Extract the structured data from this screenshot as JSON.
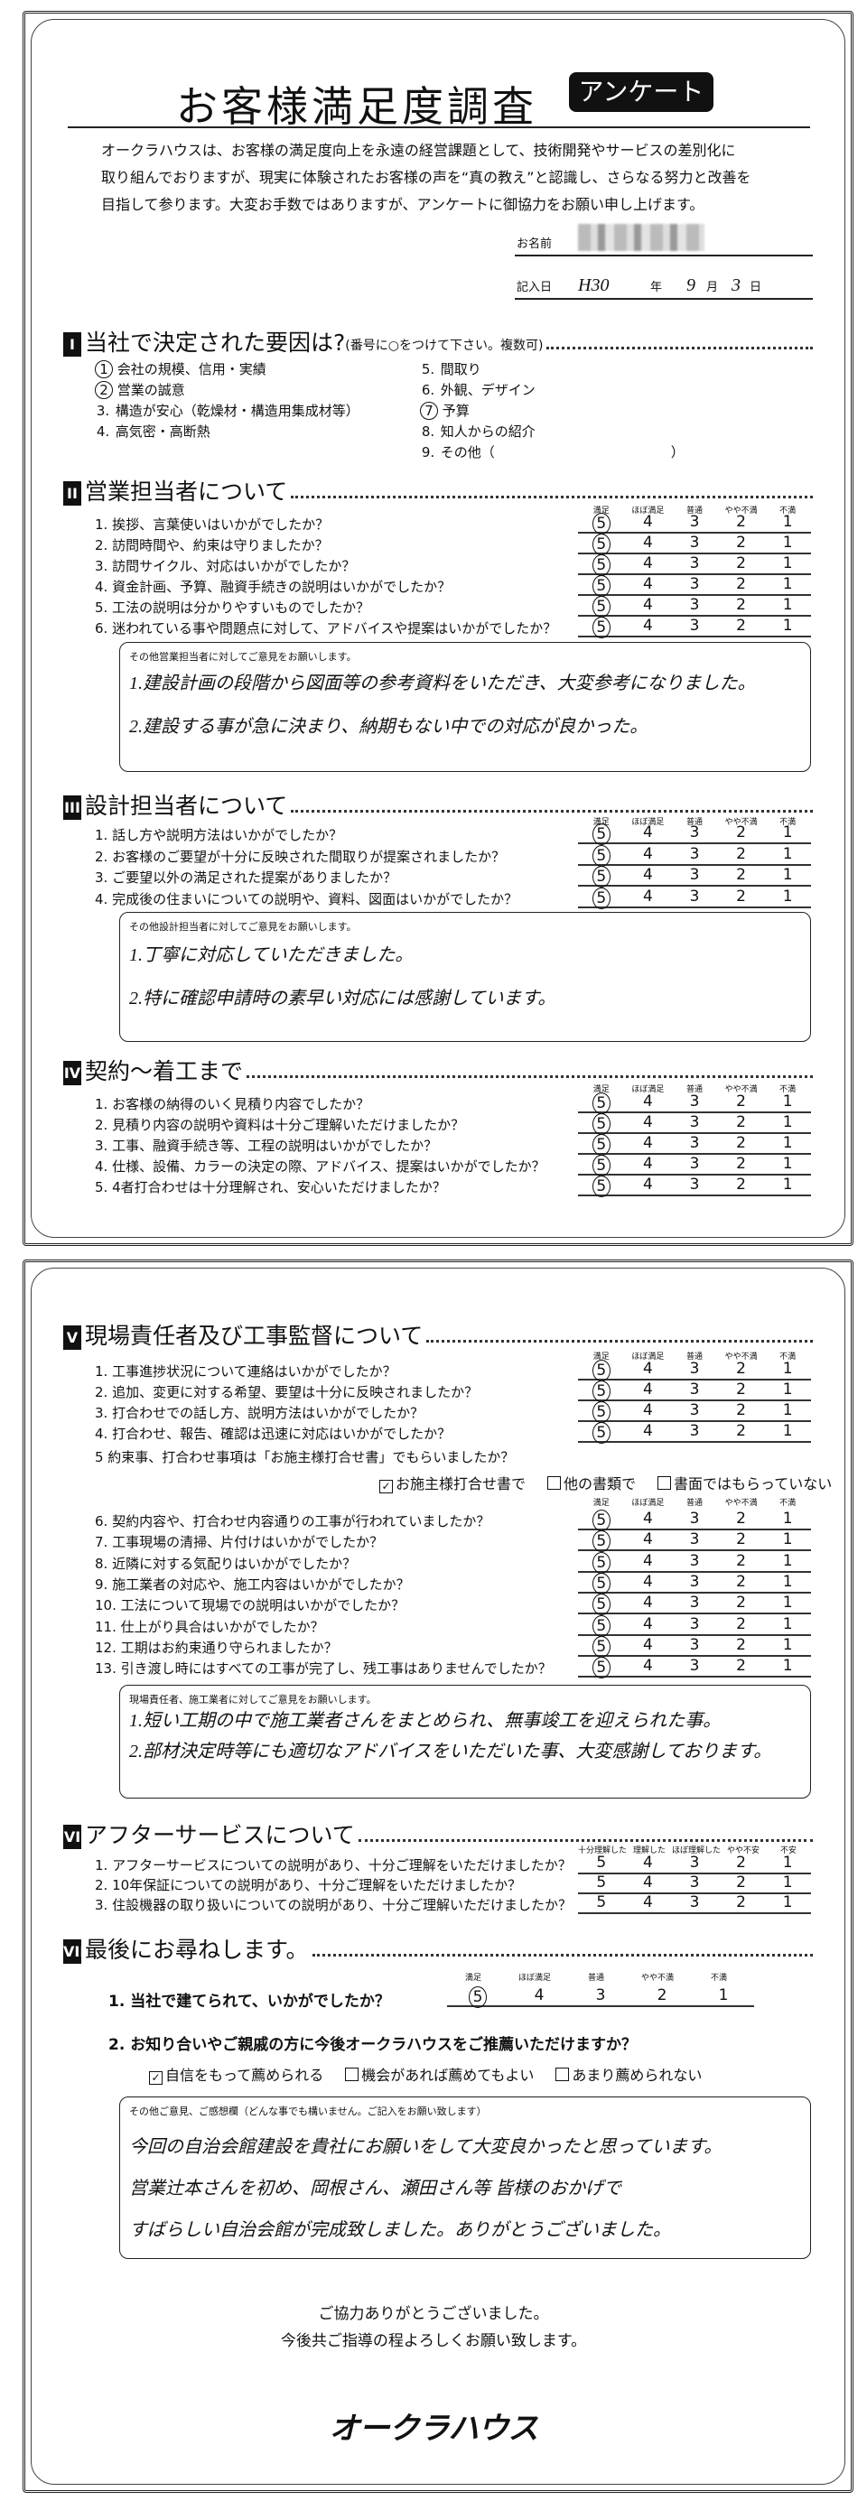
{
  "header": {
    "title": "お客様満足度調査",
    "badge": "アンケート",
    "intro": [
      "オークラハウスは、お客様の満足度向上を永遠の経営課題として、技術開発やサービスの差別化に",
      "取り組んでおりますが、現実に体験されたお客様の声を“真の教え”と認識し、さらなる努力と改善を",
      "目指して参ります。大変お手数ではありますが、アンケートに御協力をお願い申し上げます。"
    ],
    "name_label": "お名前",
    "date_label": "記入日",
    "date": {
      "era_year": "H30",
      "year_unit": "年",
      "month": "9",
      "month_unit": "月",
      "day": "3",
      "day_unit": "日"
    }
  },
  "scale_satisfaction": [
    "満足",
    "ほぼ満足",
    "普通",
    "やや不満",
    "不満"
  ],
  "scale_understanding": [
    "十分理解した",
    "理解した",
    "ほぼ理解した",
    "やや不安",
    "不安"
  ],
  "section1": {
    "numeral": "I",
    "title": "当社で決定された要因は?",
    "note": "(番号に○をつけて下さい。複数可)",
    "options": [
      {
        "num": "1",
        "text": "会社の規模、信用・実績",
        "selected": true
      },
      {
        "num": "2",
        "text": "営業の誠意",
        "selected": true
      },
      {
        "num": "3.",
        "text": "構造が安心（乾燥材・構造用集成材等）",
        "selected": false
      },
      {
        "num": "4.",
        "text": "高気密・高断熱",
        "selected": false
      },
      {
        "num": "5.",
        "text": "間取り",
        "selected": false
      },
      {
        "num": "6.",
        "text": "外観、デザイン",
        "selected": false
      },
      {
        "num": "7",
        "text": "予算",
        "selected": true
      },
      {
        "num": "8.",
        "text": "知人からの紹介",
        "selected": false
      },
      {
        "num": "9.",
        "text": "その他（　　　　　　　　　　　　　）",
        "selected": false
      }
    ]
  },
  "section2": {
    "numeral": "II",
    "title": "営業担当者について",
    "questions": [
      {
        "text": "1. 挨拶、言葉使いはいかがでしたか？",
        "answer": 5
      },
      {
        "text": "2. 訪問時間や、約束は守りましたか？",
        "answer": 5
      },
      {
        "text": "3. 訪問サイクル、対応はいかがでしたか？",
        "answer": 5
      },
      {
        "text": "4. 資金計画、予算、融資手続きの説明はいかがでしたか？",
        "answer": 5
      },
      {
        "text": "5. 工法の説明は分かりやすいものでしたか？",
        "answer": 5
      },
      {
        "text": "6. 迷われている事や問題点に対して、アドバイスや提案はいかがでしたか？",
        "answer": 5
      }
    ],
    "comment_label": "その他営業担当者に対してご意見をお願いします。",
    "comments": [
      "1.建設計画の段階から図面等の参考資料をいただき、大変参考になりました。",
      "2.建設する事が急に決まり、納期もない中での対応が良かった。"
    ]
  },
  "section3": {
    "numeral": "III",
    "title": "設計担当者について",
    "questions": [
      {
        "text": "1. 話し方や説明方法はいかがでしたか？",
        "answer": 5
      },
      {
        "text": "2. お客様のご要望が十分に反映された間取りが提案されましたか？",
        "answer": 5
      },
      {
        "text": "3. ご要望以外の満足された提案がありましたか？",
        "answer": 5
      },
      {
        "text": "4. 完成後の住まいについての説明や、資料、図面はいかがでしたか？",
        "answer": 5
      }
    ],
    "comment_label": "その他設計担当者に対してご意見をお願いします。",
    "comments": [
      "1.丁寧に対応していただきました。",
      "2.特に確認申請時の素早い対応には感謝しています。"
    ]
  },
  "section4": {
    "numeral": "IV",
    "title": "契約～着工まで",
    "questions": [
      {
        "text": "1. お客様の納得のいく見積り内容でしたか？",
        "answer": 5
      },
      {
        "text": "2. 見積り内容の説明や資料は十分ご理解いただけましたか？",
        "answer": 5
      },
      {
        "text": "3. 工事、融資手続き等、工程の説明はいかがでしたか？",
        "answer": 5
      },
      {
        "text": "4. 仕様、設備、カラーの決定の際、アドバイス、提案はいかがでしたか？",
        "answer": 5
      },
      {
        "text": "5. 4者打合わせは十分理解され、安心いただけましたか？",
        "answer": 5
      }
    ]
  },
  "section5": {
    "numeral": "V",
    "title": "現場責任者及び工事監督について",
    "questions_a": [
      {
        "text": "1. 工事進捗状況について連絡はいかがでしたか？",
        "answer": 5
      },
      {
        "text": "2. 追加、変更に対する希望、要望は十分に反映されましたか？",
        "answer": 5
      },
      {
        "text": "3. 打合わせでの話し方、説明方法はいかがでしたか？",
        "answer": 5
      },
      {
        "text": "4. 打合わせ、報告、確認は迅速に対応はいかがでしたか？",
        "answer": 5
      }
    ],
    "q5": "5 約束事、打合わせ事項は「お施主様打合せ書」でもらいましたか？",
    "q5_options": [
      {
        "label": "お施主様打合せ書で",
        "checked": true
      },
      {
        "label": "他の書類で",
        "checked": false
      },
      {
        "label": "書面ではもらっていない",
        "checked": false
      }
    ],
    "questions_b": [
      {
        "text": "6. 契約内容や、打合わせ内容通りの工事が行われていましたか？",
        "answer": 5
      },
      {
        "text": "7. 工事現場の清掃、片付けはいかがでしたか？",
        "answer": 5
      },
      {
        "text": "8. 近隣に対する気配りはいかがでしたか？",
        "answer": 5
      },
      {
        "text": "9. 施工業者の対応や、施工内容はいかがでしたか？",
        "answer": 5
      },
      {
        "text": "10. 工法について現場での説明はいかがでしたか？",
        "answer": 5
      },
      {
        "text": "11. 仕上がり具合はいかがでしたか？",
        "answer": 5
      },
      {
        "text": "12. 工期はお約束通り守られましたか？",
        "answer": 5
      },
      {
        "text": "13. 引き渡し時にはすべての工事が完了し、残工事はありませんでしたか？",
        "answer": 5
      }
    ],
    "comment_label": "現場責任者、施工業者に対してご意見をお願いします。",
    "comments": [
      "1.短い工期の中で施工業者さんをまとめられ、無事竣工を迎えられた事。",
      "2.部材決定時等にも適切なアドバイスをいただいた事、大変感謝しております。"
    ]
  },
  "section6": {
    "numeral": "VI",
    "title": "アフターサービスについて",
    "questions": [
      {
        "text": "1. アフターサービスについての説明があり、十分ご理解をいただけましたか？",
        "answer": null
      },
      {
        "text": "2. 10年保証についての説明があり、十分ご理解をいただけましたか？",
        "answer": null
      },
      {
        "text": "3. 住設機器の取り扱いについての説明があり、十分ご理解いただけましたか？",
        "answer": null
      }
    ]
  },
  "section7": {
    "numeral": "VII",
    "title": "最後にお尋ねします。",
    "q1": {
      "text": "1. 当社で建てられて、いかがでしたか？",
      "answer": 5
    },
    "q2": "2. お知り合いやご親戚の方に今後オークラハウスをご推薦いただけますか？",
    "q2_options": [
      {
        "label": "自信をもって薦められる",
        "checked": true
      },
      {
        "label": "機会があれば薦めてもよい",
        "checked": false
      },
      {
        "label": "あまり薦められない",
        "checked": false
      }
    ],
    "comment_label": "その他ご意見、ご感想欄（どんな事でも構いません。ご記入をお願い致します）",
    "comments": [
      "今回の自治会館建設を貴社にお願いをして大変良かったと思っています。",
      "営業辻本さんを初め、岡根さん、瀬田さん等 皆様のおかげで",
      "すばらしい自治会館が完成致しました。ありがとうございました。"
    ]
  },
  "footer": {
    "thanks": "ご協力ありがとうございました。",
    "request": "今後共ご指導の程よろしくお願い致します。",
    "logo": "オークラハウス"
  }
}
